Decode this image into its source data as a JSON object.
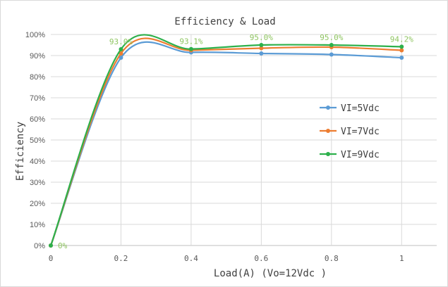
{
  "chart_data": {
    "type": "line",
    "title": "Efficiency & Load",
    "xlabel": "Load(A) (Vo=12Vdc )",
    "ylabel": "Efficiency",
    "x": [
      0,
      0.2,
      0.4,
      0.6,
      0.8,
      1
    ],
    "x_tick_labels": [
      "0",
      "0.2",
      "0.4",
      "0.6",
      "0.8",
      "1"
    ],
    "y_tick_labels": [
      "0%",
      "10%",
      "20%",
      "30%",
      "40%",
      "50%",
      "60%",
      "70%",
      "80%",
      "90%",
      "100%"
    ],
    "xlim": [
      0,
      1.1
    ],
    "ylim": [
      0,
      100
    ],
    "grid": true,
    "legend_position": "right",
    "series": [
      {
        "name": "VI=5Vdc",
        "color": "#5b9bd5",
        "values": [
          0,
          89.0,
          91.5,
          91.0,
          90.5,
          89.0
        ]
      },
      {
        "name": "VI=7Vdc",
        "color": "#ed7d31",
        "values": [
          0,
          91.0,
          92.5,
          93.5,
          94.0,
          92.5
        ]
      },
      {
        "name": "VI=9Vdc",
        "color": "#2db04b",
        "values": [
          0,
          93.0,
          93.1,
          95.0,
          95.0,
          94.2
        ]
      }
    ],
    "data_labels": [
      {
        "x": 0,
        "y": 0,
        "text": "0%"
      },
      {
        "x": 0.2,
        "y": 93.0,
        "text": "93.0%"
      },
      {
        "x": 0.4,
        "y": 93.1,
        "text": "93.1%"
      },
      {
        "x": 0.6,
        "y": 95.0,
        "text": "95.0%"
      },
      {
        "x": 0.8,
        "y": 95.0,
        "text": "95.0%"
      },
      {
        "x": 1,
        "y": 94.2,
        "text": "94.2%"
      }
    ],
    "data_label_color": "#8fc561"
  }
}
